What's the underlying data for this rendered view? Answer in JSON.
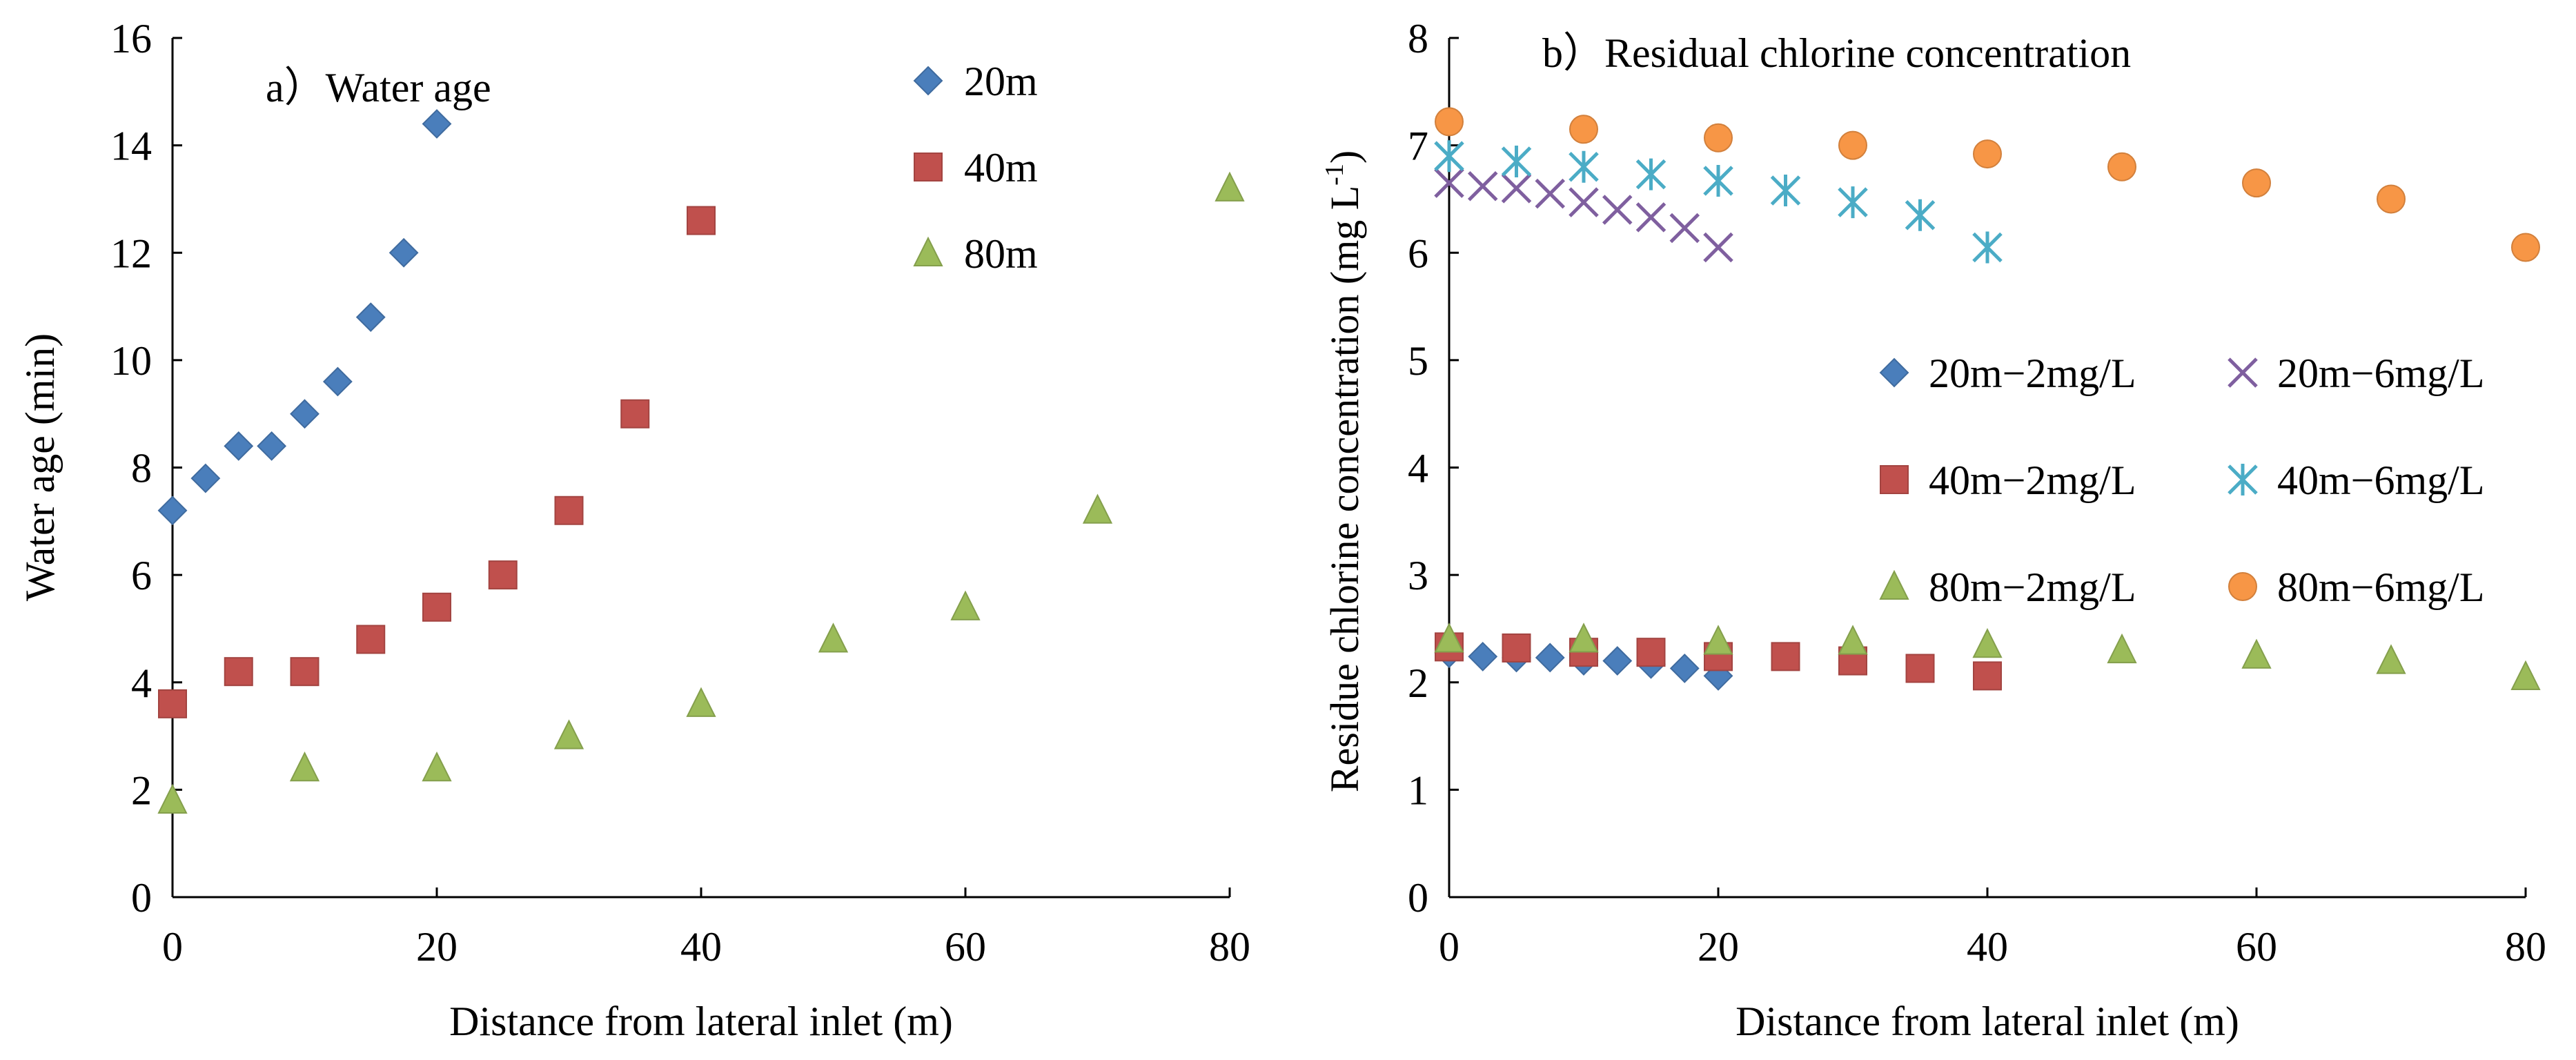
{
  "chart_data": [
    {
      "panel": "a",
      "type": "scatter",
      "title": "a）Water age",
      "xlabel": "Distance from lateral inlet (m)",
      "ylabel": "Water age (min)",
      "xlim": [
        0,
        80
      ],
      "ylim": [
        0,
        16
      ],
      "xticks": [
        0,
        20,
        40,
        60,
        80
      ],
      "yticks": [
        0,
        2,
        4,
        6,
        8,
        10,
        12,
        14,
        16
      ],
      "grid": false,
      "legend_position": "top-right",
      "series": [
        {
          "name": "20m",
          "marker": "diamond",
          "color": "#4a7ebb",
          "x": [
            0,
            2.5,
            5,
            7.5,
            10,
            12.5,
            15,
            17.5,
            20
          ],
          "y": [
            7.2,
            7.8,
            8.4,
            8.4,
            9.0,
            9.6,
            10.8,
            12.0,
            14.4
          ]
        },
        {
          "name": "40m",
          "marker": "square",
          "color": "#c0504d",
          "x": [
            0,
            5,
            10,
            15,
            20,
            25,
            30,
            35,
            40
          ],
          "y": [
            3.6,
            4.2,
            4.2,
            4.8,
            5.4,
            6.0,
            7.2,
            9.0,
            12.6
          ]
        },
        {
          "name": "80m",
          "marker": "triangle",
          "color": "#9bbb59",
          "x": [
            0,
            10,
            20,
            30,
            40,
            50,
            60,
            70,
            80
          ],
          "y": [
            1.8,
            2.4,
            2.4,
            3.0,
            3.6,
            4.8,
            5.4,
            7.2,
            13.2
          ]
        }
      ]
    },
    {
      "panel": "b",
      "type": "scatter",
      "title": "b）Residual chlorine concentration",
      "xlabel": "Distance from lateral inlet (m)",
      "ylabel_main": "Residue  chlorine  concentration (mg  L",
      "ylabel_sup": "-1",
      "ylabel_end": ")",
      "xlim": [
        0,
        80
      ],
      "ylim": [
        0,
        8
      ],
      "xticks": [
        0,
        20,
        40,
        60,
        80
      ],
      "yticks": [
        0,
        1,
        2,
        3,
        4,
        5,
        6,
        7,
        8
      ],
      "grid": false,
      "legend_position": "center-right",
      "series": [
        {
          "name": "20m−2mg/L",
          "marker": "diamond",
          "color": "#4a7ebb",
          "x": [
            0,
            2.5,
            5,
            7.5,
            10,
            12.5,
            15,
            17.5,
            20
          ],
          "y": [
            2.27,
            2.24,
            2.23,
            2.23,
            2.2,
            2.2,
            2.17,
            2.13,
            2.06
          ]
        },
        {
          "name": "40m−2mg/L",
          "marker": "square",
          "color": "#c0504d",
          "x": [
            0,
            5,
            10,
            15,
            20,
            25,
            30,
            35,
            40
          ],
          "y": [
            2.33,
            2.32,
            2.28,
            2.28,
            2.24,
            2.24,
            2.2,
            2.13,
            2.06
          ]
        },
        {
          "name": "80m−2mg/L",
          "marker": "triangle",
          "color": "#9bbb59",
          "x": [
            0,
            10,
            20,
            30,
            40,
            50,
            60,
            70,
            80
          ],
          "y": [
            2.4,
            2.4,
            2.38,
            2.38,
            2.35,
            2.3,
            2.25,
            2.2,
            2.05
          ]
        },
        {
          "name": "20m−6mg/L",
          "marker": "x",
          "color": "#7f5f9f",
          "x": [
            0,
            2.5,
            5,
            7.5,
            10,
            12.5,
            15,
            17.5,
            20
          ],
          "y": [
            6.65,
            6.62,
            6.6,
            6.55,
            6.47,
            6.4,
            6.33,
            6.23,
            6.05
          ]
        },
        {
          "name": "40m−6mg/L",
          "marker": "asterisk",
          "color": "#4bacc6",
          "x": [
            0,
            5,
            10,
            15,
            20,
            25,
            30,
            35,
            40
          ],
          "y": [
            6.9,
            6.85,
            6.8,
            6.73,
            6.67,
            6.58,
            6.47,
            6.35,
            6.05
          ]
        },
        {
          "name": "80m−6mg/L",
          "marker": "circle",
          "color": "#f79646",
          "x": [
            0,
            10,
            20,
            30,
            40,
            50,
            60,
            70,
            80
          ],
          "y": [
            7.22,
            7.15,
            7.07,
            7.0,
            6.92,
            6.8,
            6.65,
            6.5,
            6.05
          ]
        }
      ]
    }
  ]
}
